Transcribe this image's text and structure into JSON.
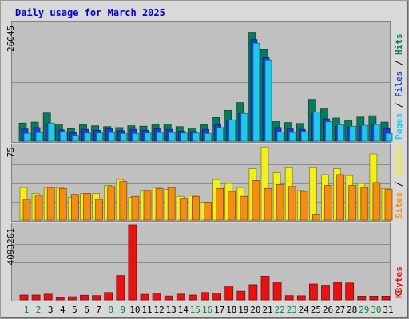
{
  "chart_data": [
    {
      "type": "bar",
      "title": "Daily usage for March 2025",
      "categories": [
        "1",
        "2",
        "3",
        "4",
        "5",
        "6",
        "7",
        "8",
        "9",
        "10",
        "11",
        "12",
        "13",
        "14",
        "15",
        "16",
        "17",
        "18",
        "19",
        "20",
        "21",
        "22",
        "23",
        "24",
        "25",
        "26",
        "27",
        "28",
        "29",
        "30",
        "31"
      ],
      "weekend_days": [
        "1",
        "2",
        "8",
        "9",
        "15",
        "16",
        "22",
        "23",
        "29",
        "30"
      ],
      "ylabel_parts": [
        "Pages",
        "Files",
        "Hits"
      ],
      "ylim": [
        0,
        26045
      ],
      "ytick_label": "26045",
      "series": [
        {
          "name": "Hits",
          "color": "#0b7a5c",
          "values": [
            4000,
            4200,
            6200,
            3800,
            2800,
            3600,
            3400,
            3200,
            3000,
            3400,
            3300,
            3600,
            3800,
            3200,
            2900,
            3600,
            5200,
            6800,
            8500,
            24000,
            20200,
            4300,
            4100,
            3900,
            9200,
            7100,
            5100,
            4600,
            5300,
            5600,
            4200
          ]
        },
        {
          "name": "Files",
          "color": "#1c3cd8",
          "values": [
            2700,
            3000,
            3500,
            2500,
            1900,
            2600,
            2400,
            2700,
            2300,
            2600,
            2400,
            2700,
            2600,
            2200,
            2100,
            2600,
            3600,
            4700,
            6100,
            22400,
            18400,
            3000,
            2700,
            2600,
            6100,
            4900,
            3300,
            3100,
            3300,
            3600,
            2800
          ]
        },
        {
          "name": "Pages",
          "color": "#22c8ec",
          "values": [
            1700,
            1900,
            4000,
            2100,
            1300,
            1800,
            1800,
            1900,
            1700,
            1700,
            1800,
            1900,
            1900,
            1800,
            1800,
            1700,
            3000,
            4700,
            6100,
            21600,
            17900,
            2000,
            1900,
            2100,
            6400,
            4300,
            3600,
            3300,
            3500,
            3700,
            1700
          ]
        }
      ]
    },
    {
      "type": "bar",
      "categories": [
        "1",
        "2",
        "3",
        "4",
        "5",
        "6",
        "7",
        "8",
        "9",
        "10",
        "11",
        "12",
        "13",
        "14",
        "15",
        "16",
        "17",
        "18",
        "19",
        "20",
        "21",
        "22",
        "23",
        "24",
        "25",
        "26",
        "27",
        "28",
        "29",
        "30",
        "31"
      ],
      "ylabel_parts": [
        "Sites",
        "Visits"
      ],
      "ylim": [
        0,
        75
      ],
      "ytick_label": "75",
      "series": [
        {
          "name": "Visits",
          "color": "#f2f01a",
          "values": [
            33,
            27,
            33,
            33,
            23,
            27,
            27,
            35,
            41,
            23,
            30,
            33,
            31,
            24,
            25,
            18,
            41,
            37,
            33,
            52,
            74,
            48,
            53,
            30,
            53,
            46,
            52,
            45,
            37,
            67,
            32
          ]
        },
        {
          "name": "Sites",
          "color": "#f38d14",
          "values": [
            21,
            25,
            33,
            32,
            26,
            27,
            21,
            34,
            39,
            24,
            30,
            32,
            33,
            22,
            24,
            18,
            32,
            29,
            24,
            40,
            32,
            36,
            34,
            29,
            6,
            35,
            46,
            35,
            33,
            38,
            31
          ]
        }
      ]
    },
    {
      "type": "bar",
      "categories": [
        "1",
        "2",
        "3",
        "4",
        "5",
        "6",
        "7",
        "8",
        "9",
        "10",
        "11",
        "12",
        "13",
        "14",
        "15",
        "16",
        "17",
        "18",
        "19",
        "20",
        "21",
        "22",
        "23",
        "24",
        "25",
        "26",
        "27",
        "28",
        "29",
        "30",
        "31"
      ],
      "ylabel_parts": [
        "KBytes"
      ],
      "ylim": [
        0,
        4093261
      ],
      "ytick_label": "4093261",
      "series": [
        {
          "name": "KBytes",
          "color": "#e81212",
          "values": [
            260000,
            260000,
            310000,
            120000,
            170000,
            250000,
            230000,
            400000,
            1320000,
            4093261,
            300000,
            360000,
            210000,
            310000,
            260000,
            400000,
            370000,
            760000,
            470000,
            830000,
            1290000,
            970000,
            230000,
            220000,
            870000,
            800000,
            960000,
            920000,
            200000,
            200000,
            200000
          ]
        }
      ]
    }
  ]
}
